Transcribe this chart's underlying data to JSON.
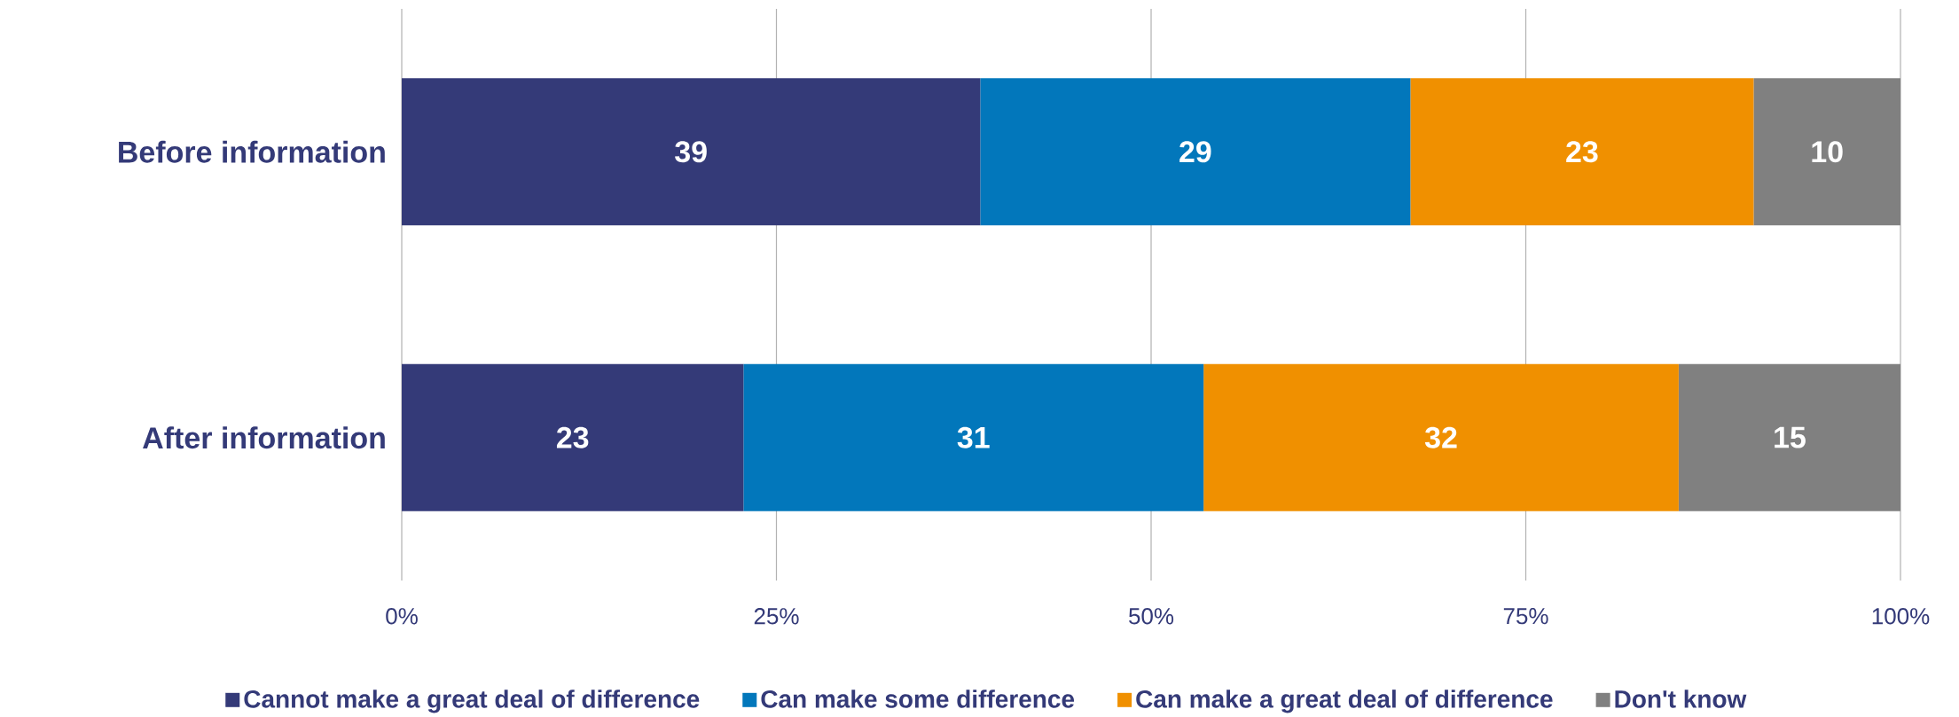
{
  "chart_data": {
    "type": "bar",
    "orientation": "horizontal",
    "stacked": true,
    "categories": [
      "Before information",
      "After information"
    ],
    "series": [
      {
        "name": "Cannot make a great deal of difference",
        "color": "#343a78",
        "values": [
          38.6,
          22.8
        ],
        "value_labels": [
          "39",
          "23"
        ]
      },
      {
        "name": "Can make some difference",
        "color": "#0277bb",
        "values": [
          28.7,
          30.7
        ],
        "value_labels": [
          "29",
          "31"
        ]
      },
      {
        "name": "Can make a great deal of difference",
        "color": "#f09000",
        "values": [
          22.9,
          31.7
        ],
        "value_labels": [
          "23",
          "32"
        ]
      },
      {
        "name": "Don't know",
        "color": "#808080",
        "values": [
          9.8,
          14.8
        ],
        "value_labels": [
          "10",
          "15"
        ]
      }
    ],
    "xlim": [
      0,
      100
    ],
    "xticks": [
      {
        "value": 0,
        "label": "0%"
      },
      {
        "value": 25,
        "label": "25%"
      },
      {
        "value": 50,
        "label": "50%"
      },
      {
        "value": 75,
        "label": "75%"
      },
      {
        "value": 100,
        "label": "100%"
      }
    ],
    "grid": "x",
    "legend": "bottom"
  }
}
